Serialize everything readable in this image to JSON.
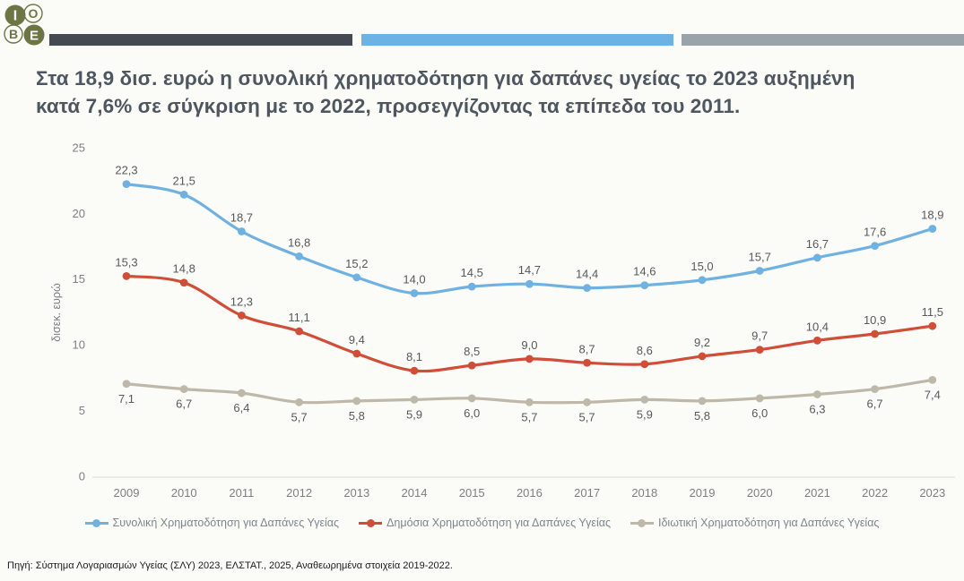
{
  "logo": {
    "letters": [
      "I",
      "O",
      "B",
      "E"
    ],
    "color": "#6e7544"
  },
  "header_bars": [
    {
      "color": "#454a52"
    },
    {
      "color": "#6cb2e2"
    },
    {
      "color": "#9aa2aa"
    }
  ],
  "title_line1": "Στα 18,9 δισ. ευρώ η συνολική χρηματοδότηση για δαπάνες υγείας το 2023 αυξημένη",
  "title_line2": "κατά 7,6% σε σύγκριση με το 2022, προσεγγίζοντας τα επίπεδα του 2011.",
  "chart_data": {
    "type": "line",
    "title": "Στα 18,9 δισ. ευρώ η συνολική χρηματοδότηση για δαπάνες υγείας το 2023 αυξημένη κατά 7,6% σε σύγκριση με το 2022, προσεγγίζοντας τα επίπεδα του 2011.",
    "x": [
      "2009",
      "2010",
      "2011",
      "2012",
      "2013",
      "2014",
      "2015",
      "2016",
      "2017",
      "2018",
      "2019",
      "2020",
      "2021",
      "2022",
      "2023"
    ],
    "series": [
      {
        "name": "Συνολική Χρηματοδότηση για Δαπάνες Υγείας",
        "color": "#6fb1e0",
        "label_position": "above",
        "values": [
          22.3,
          21.5,
          18.7,
          16.8,
          15.2,
          14.0,
          14.5,
          14.7,
          14.4,
          14.6,
          15.0,
          15.7,
          16.7,
          17.6,
          18.9
        ]
      },
      {
        "name": "Δημόσια Χρηματοδότηση για Δαπάνες Υγείας",
        "color": "#d04e38",
        "label_position": "above",
        "values": [
          15.3,
          14.8,
          12.3,
          11.1,
          9.4,
          8.1,
          8.5,
          9.0,
          8.7,
          8.6,
          9.2,
          9.7,
          10.4,
          10.9,
          11.5
        ]
      },
      {
        "name": "Ιδιωτική Χρηματοδότηση για Δαπάνες Υγείας",
        "color": "#bdb8a8",
        "label_position": "below",
        "values": [
          7.1,
          6.7,
          6.4,
          5.7,
          5.8,
          5.9,
          6.0,
          5.7,
          5.7,
          5.9,
          5.8,
          6.0,
          6.3,
          6.7,
          7.4
        ]
      }
    ],
    "xlabel": "",
    "ylabel": "δισεκ. ευρώ",
    "ylim": [
      0,
      25
    ],
    "yticks": [
      0,
      5,
      10,
      15,
      20,
      25
    ],
    "grid": false,
    "legend_position": "bottom",
    "decimal_separator": ","
  },
  "footer": {
    "source": "Πηγή: Σύστημα Λογαριασμών Υγείας (ΣΛΥ) 2023, ΕΛΣΤΑΤ., 2025, Αναθεωρημένα στοιχεία 2019-2022."
  }
}
